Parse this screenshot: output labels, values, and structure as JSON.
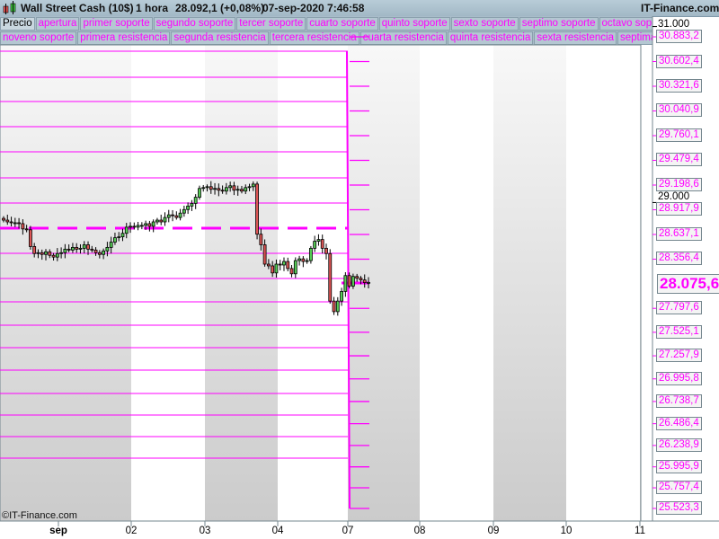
{
  "header": {
    "instrument": "Wall Street Cash (10$)",
    "timeframe": "1 hora",
    "quote": "28.092,1 (+0,08%)",
    "datetime": "07-sep-2020 7:46:58",
    "brand": "IT-Finance.com"
  },
  "legend": {
    "row1": [
      "Precio",
      "apertura",
      "primer soporte",
      "segundo soporte",
      "tercer soporte",
      "cuarto soporte",
      "quinto soporte",
      "sexto soporte",
      "septimo soporte",
      "octavo soporte"
    ],
    "row2": [
      "noveno soporte",
      "primera resistencia",
      "segunda resistencia",
      "tercera resistencia",
      "cuarta resistencia",
      "quinta resistencia",
      "sexta resistencia",
      "septima resister"
    ]
  },
  "colors": {
    "levels": "#ff00ff",
    "up_candle": "#55cc55",
    "down_candle": "#dd5555",
    "axis": "#75878f"
  },
  "chart_data": {
    "type": "candlestick",
    "ylim": [
      25420,
      31160
    ],
    "y_black_ticks": [
      {
        "value": 31000,
        "label": "31.000"
      },
      {
        "value": 29000,
        "label": "29.000"
      }
    ],
    "y_level_labels": [
      {
        "value": 30883.2,
        "label": "30.883,2"
      },
      {
        "value": 30602.4,
        "label": "30.602,4"
      },
      {
        "value": 30321.6,
        "label": "30.321,6"
      },
      {
        "value": 30040.9,
        "label": "30.040,9"
      },
      {
        "value": 29760.1,
        "label": "29.760,1"
      },
      {
        "value": 29479.4,
        "label": "29.479,4"
      },
      {
        "value": 29198.6,
        "label": "29.198,6"
      },
      {
        "value": 28917.9,
        "label": "28.917,9"
      },
      {
        "value": 28637.1,
        "label": "28.637,1"
      },
      {
        "value": 28356.4,
        "label": "28.356,4"
      },
      {
        "value": 27797.6,
        "label": "27.797,6"
      },
      {
        "value": 27525.1,
        "label": "27.525,1"
      },
      {
        "value": 27257.9,
        "label": "27.257,9"
      },
      {
        "value": 26995.8,
        "label": "26.995,8"
      },
      {
        "value": 26738.7,
        "label": "26.738,7"
      },
      {
        "value": 26486.4,
        "label": "26.486,4"
      },
      {
        "value": 26238.9,
        "label": "26.238,9"
      },
      {
        "value": 25995.9,
        "label": "25.995,9"
      },
      {
        "value": 25757.4,
        "label": "25.757,4"
      },
      {
        "value": 25523.3,
        "label": "25.523,3"
      }
    ],
    "current_price": {
      "value": 28075.6,
      "label": "28.075,6"
    },
    "previous_levels": [
      30720,
      30424,
      30148,
      29862,
      29576,
      29280,
      28994,
      28423,
      28137,
      27871,
      27606,
      27350,
      27095,
      26830,
      26585,
      26340,
      26095
    ],
    "previous_open_level": 28709,
    "x_ticks": [
      "sep",
      "02",
      "03",
      "04",
      "07",
      "08",
      "09",
      "10",
      "11"
    ],
    "closes": [
      28800,
      28780,
      28770,
      28770,
      28760,
      28700,
      28690,
      28500,
      28420,
      28430,
      28410,
      28440,
      28400,
      28380,
      28420,
      28430,
      28470,
      28460,
      28490,
      28470,
      28480,
      28520,
      28470,
      28460,
      28430,
      28410,
      28450,
      28490,
      28550,
      28600,
      28610,
      28650,
      28720,
      28730,
      28720,
      28740,
      28740,
      28760,
      28730,
      28780,
      28800,
      28780,
      28830,
      28860,
      28850,
      28830,
      28880,
      28920,
      28960,
      28990,
      29060,
      29160,
      29170,
      29180,
      29150,
      29160,
      29140,
      29130,
      29170,
      29190,
      29140,
      29150,
      29130,
      29170,
      29180,
      29210,
      28640,
      28520,
      28300,
      28280,
      28200,
      28300,
      28290,
      28330,
      28250,
      28190,
      28340,
      28360,
      28330,
      28340,
      28480,
      28560,
      28580,
      28480,
      28420,
      27880,
      27760,
      27880,
      27990,
      28170,
      28050,
      28160,
      28140,
      28120,
      28090,
      28092
    ],
    "copyright": "©IT-Finance.com"
  }
}
